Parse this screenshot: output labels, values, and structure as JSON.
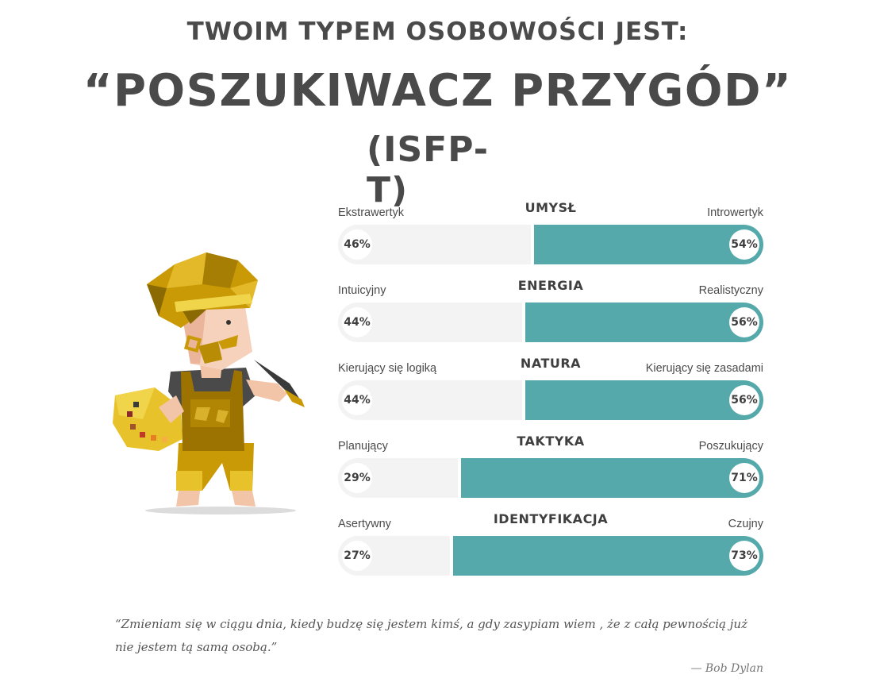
{
  "header": {
    "subtitle": "TWOIM TYPEM OSOBOWOŚCI JEST:",
    "type_name": "“POSZUKIWACZ PRZYGÓD”",
    "type_code": "(ISFP-T)"
  },
  "scales": [
    {
      "title": "UMYSŁ",
      "left_label": "Ekstrawertyk",
      "right_label": "Introwertyk",
      "left_pct": "46%",
      "right_pct": "54%",
      "right_value": 54
    },
    {
      "title": "ENERGIA",
      "left_label": "Intuicyjny",
      "right_label": "Realistyczny",
      "left_pct": "44%",
      "right_pct": "56%",
      "right_value": 56
    },
    {
      "title": "NATURA",
      "left_label": "Kierujący się logiką",
      "right_label": "Kierujący się zasadami",
      "left_pct": "44%",
      "right_pct": "56%",
      "right_value": 56
    },
    {
      "title": "TAKTYKA",
      "left_label": "Planujący",
      "right_label": "Poszukujący",
      "left_pct": "29%",
      "right_pct": "71%",
      "right_value": 71
    },
    {
      "title": "IDENTYFIKACJA",
      "left_label": "Asertywny",
      "right_label": "Czujny",
      "left_pct": "27%",
      "right_pct": "73%",
      "right_value": 73
    }
  ],
  "quote": {
    "text": "“Zmieniam się w ciągu dnia, kiedy budzę się jestem kimś, a gdy zasypiam wiem , że z całą pewnością już nie jestem tą samą osobą.”",
    "author": "— Bob Dylan"
  },
  "colors": {
    "accent": "#56a9ab",
    "track": "#f3f3f3",
    "text": "#4a4a4a"
  },
  "illustration": {
    "icon": "adventurer-painter-illustration"
  }
}
